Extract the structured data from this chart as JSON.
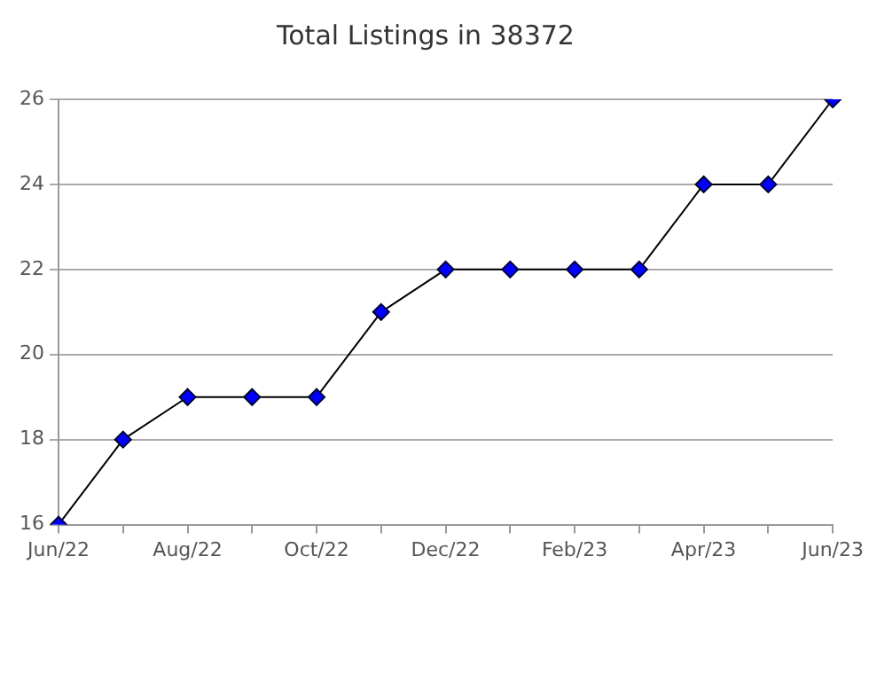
{
  "chart_data": {
    "type": "line",
    "title": "Total Listings in 38372",
    "categories": [
      "Jun/22",
      null,
      "Aug/22",
      null,
      "Oct/22",
      null,
      "Dec/22",
      null,
      "Feb/23",
      null,
      "Apr/23",
      null,
      "Jun/23"
    ],
    "series": [
      {
        "color": "#0000ff",
        "values": [
          16,
          18,
          19,
          19,
          19,
          21,
          22,
          22,
          22,
          22,
          24,
          24,
          26
        ]
      }
    ],
    "ylim": [
      16,
      26
    ],
    "yticks": [
      16,
      18,
      20,
      22,
      24,
      26
    ],
    "grid": "y",
    "legend": false,
    "marker": "diamond",
    "line_style": "solid"
  }
}
